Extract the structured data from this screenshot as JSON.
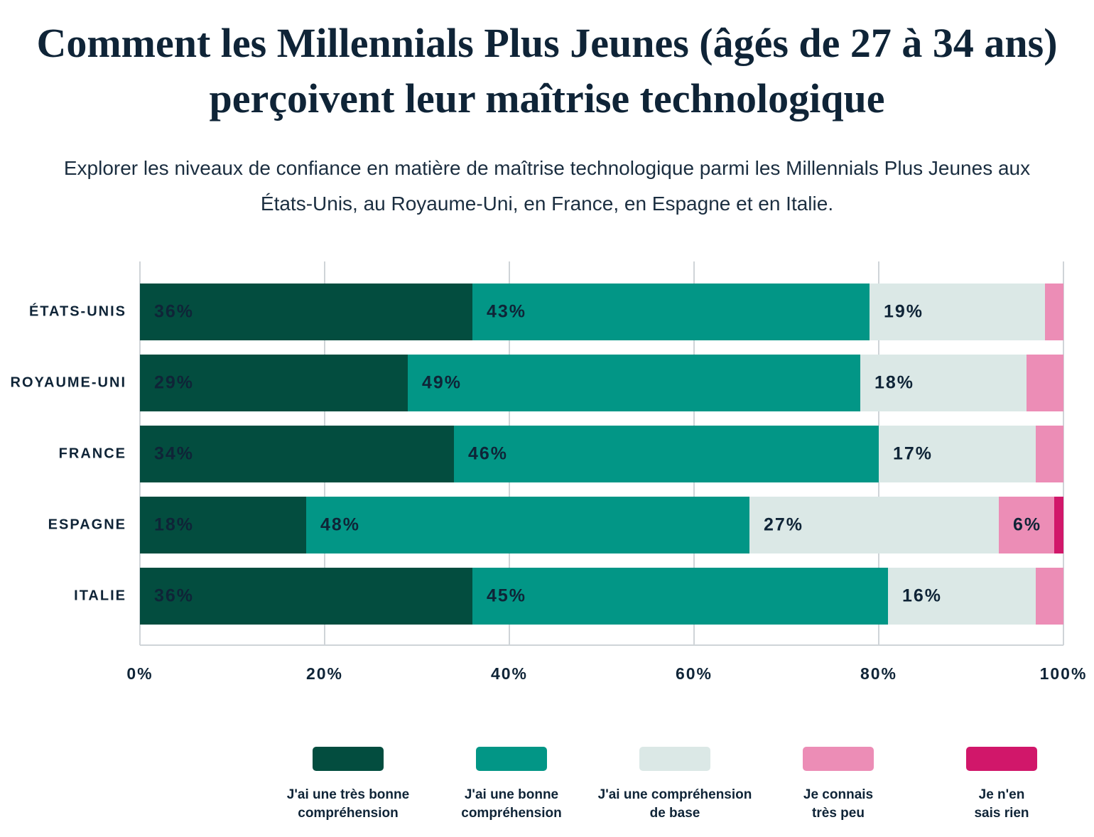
{
  "chart_data": {
    "type": "stacked-barh",
    "title": "Comment les Millennials Plus Jeunes (âgés de 27 à 34 ans) perçoivent leur maîtrise technologique",
    "subtitle": "Explorer les niveaux de confiance en matière de maîtrise technologique parmi les Millennials Plus Jeunes aux États-Unis, au Royaume-Uni, en France, en Espagne et en Italie.",
    "categories": [
      "ÉTATS-UNIS",
      "ROYAUME-UNI",
      "FRANCE",
      "ESPAGNE",
      "ITALIE"
    ],
    "series": [
      {
        "name": "J'ai une très bonne compréhension",
        "color": "#034d3f",
        "values": [
          36,
          29,
          34,
          18,
          36
        ],
        "value_labels": [
          "36%",
          "29%",
          "34%",
          "18%",
          "36%"
        ]
      },
      {
        "name": "J'ai une bonne compréhension",
        "color": "#029686",
        "values": [
          43,
          49,
          46,
          48,
          45
        ],
        "value_labels": [
          "43%",
          "49%",
          "46%",
          "48%",
          "45%"
        ]
      },
      {
        "name": "J'ai une compréhension de base",
        "color": "#dbe8e6",
        "values": [
          19,
          18,
          17,
          27,
          16
        ],
        "value_labels": [
          "19%",
          "18%",
          "17%",
          "27%",
          "16%"
        ]
      },
      {
        "name": "Je connais très peu",
        "color": "#ec8db6",
        "values": [
          2,
          4,
          3,
          6,
          3
        ],
        "value_labels": [
          null,
          null,
          null,
          "6%",
          null
        ]
      },
      {
        "name": "Je n'en sais rien",
        "color": "#d1176a",
        "values": [
          null,
          null,
          null,
          1,
          null
        ],
        "value_labels": [
          null,
          null,
          null,
          null,
          null
        ]
      }
    ],
    "xlim": [
      0,
      100
    ],
    "xticks": [
      {
        "value": 0,
        "label": "0%"
      },
      {
        "value": 20,
        "label": "20%"
      },
      {
        "value": 40,
        "label": "40%"
      },
      {
        "value": 60,
        "label": "60%"
      },
      {
        "value": 80,
        "label": "80%"
      },
      {
        "value": 100,
        "label": "100%"
      }
    ],
    "grid": true,
    "legend": "bottom"
  }
}
